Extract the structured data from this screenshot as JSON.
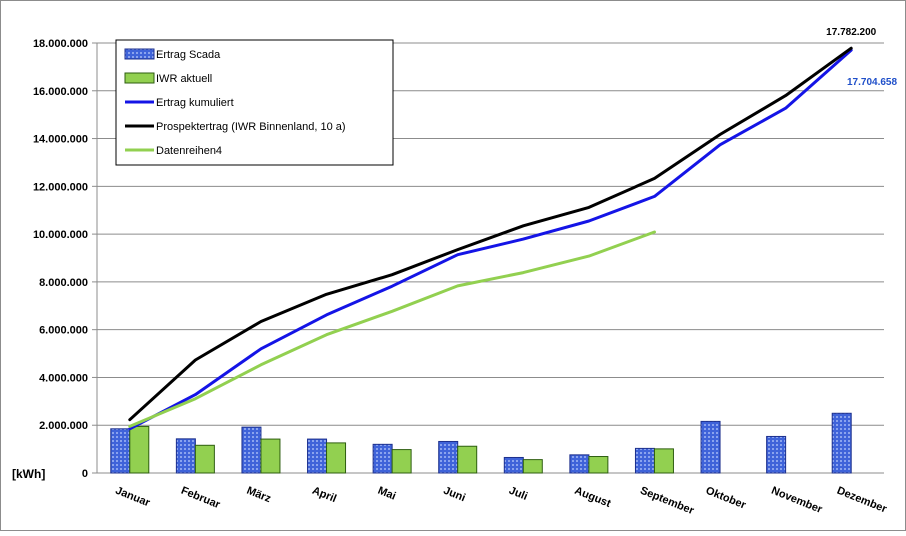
{
  "chart_data": {
    "type": "bar",
    "categories": [
      "Januar",
      "Februar",
      "März",
      "April",
      "Mai",
      "Juni",
      "Juli",
      "August",
      "September",
      "Oktober",
      "November",
      "Dezember"
    ],
    "ylabel": "[kWh]",
    "ylim": [
      0,
      18000000
    ],
    "yticks": [
      "0",
      "2.000.000",
      "4.000.000",
      "6.000.000",
      "8.000.000",
      "10.000.000",
      "12.000.000",
      "14.000.000",
      "16.000.000",
      "18.000.000"
    ],
    "grid": true,
    "legend_position": "top-left",
    "series": [
      {
        "name": "Ertrag Scada",
        "kind": "bar",
        "color": "#3f63d9",
        "values": [
          1850000,
          1430000,
          1920000,
          1420000,
          1200000,
          1320000,
          650000,
          760000,
          1030000,
          2160000,
          1530000,
          2500000
        ]
      },
      {
        "name": "IWR aktuell",
        "kind": "bar",
        "color": "#92d050",
        "values": [
          1950000,
          1160000,
          1420000,
          1260000,
          980000,
          1120000,
          560000,
          690000,
          1010000,
          null,
          null,
          null
        ]
      },
      {
        "name": "Ertrag kumuliert",
        "kind": "line",
        "color": "#1414e6",
        "values": [
          1850000,
          3280000,
          5200000,
          6620000,
          7820000,
          9140000,
          9790000,
          10550000,
          11580000,
          13740000,
          15270000,
          17704658
        ]
      },
      {
        "name": "Prospektertrag (IWR Binnenland, 10 a)",
        "kind": "line",
        "color": "#000000",
        "values": [
          2230000,
          4730000,
          6340000,
          7480000,
          8300000,
          9350000,
          10350000,
          11120000,
          12330000,
          14170000,
          15800000,
          17782200
        ]
      },
      {
        "name": "Datenreihen4",
        "kind": "line",
        "color": "#92d050",
        "values": [
          1950000,
          3110000,
          4530000,
          5790000,
          6770000,
          7830000,
          8390000,
          9080000,
          10090000,
          null,
          null,
          null
        ]
      }
    ],
    "annotations": [
      {
        "text": "17.782.200",
        "series": "Prospektertrag (IWR Binnenland, 10 a)",
        "category": "Dezember",
        "color": "#000000"
      },
      {
        "text": "17.704.658",
        "series": "Ertrag kumuliert",
        "category": "Dezember",
        "color": "#1f4fc9"
      }
    ]
  }
}
